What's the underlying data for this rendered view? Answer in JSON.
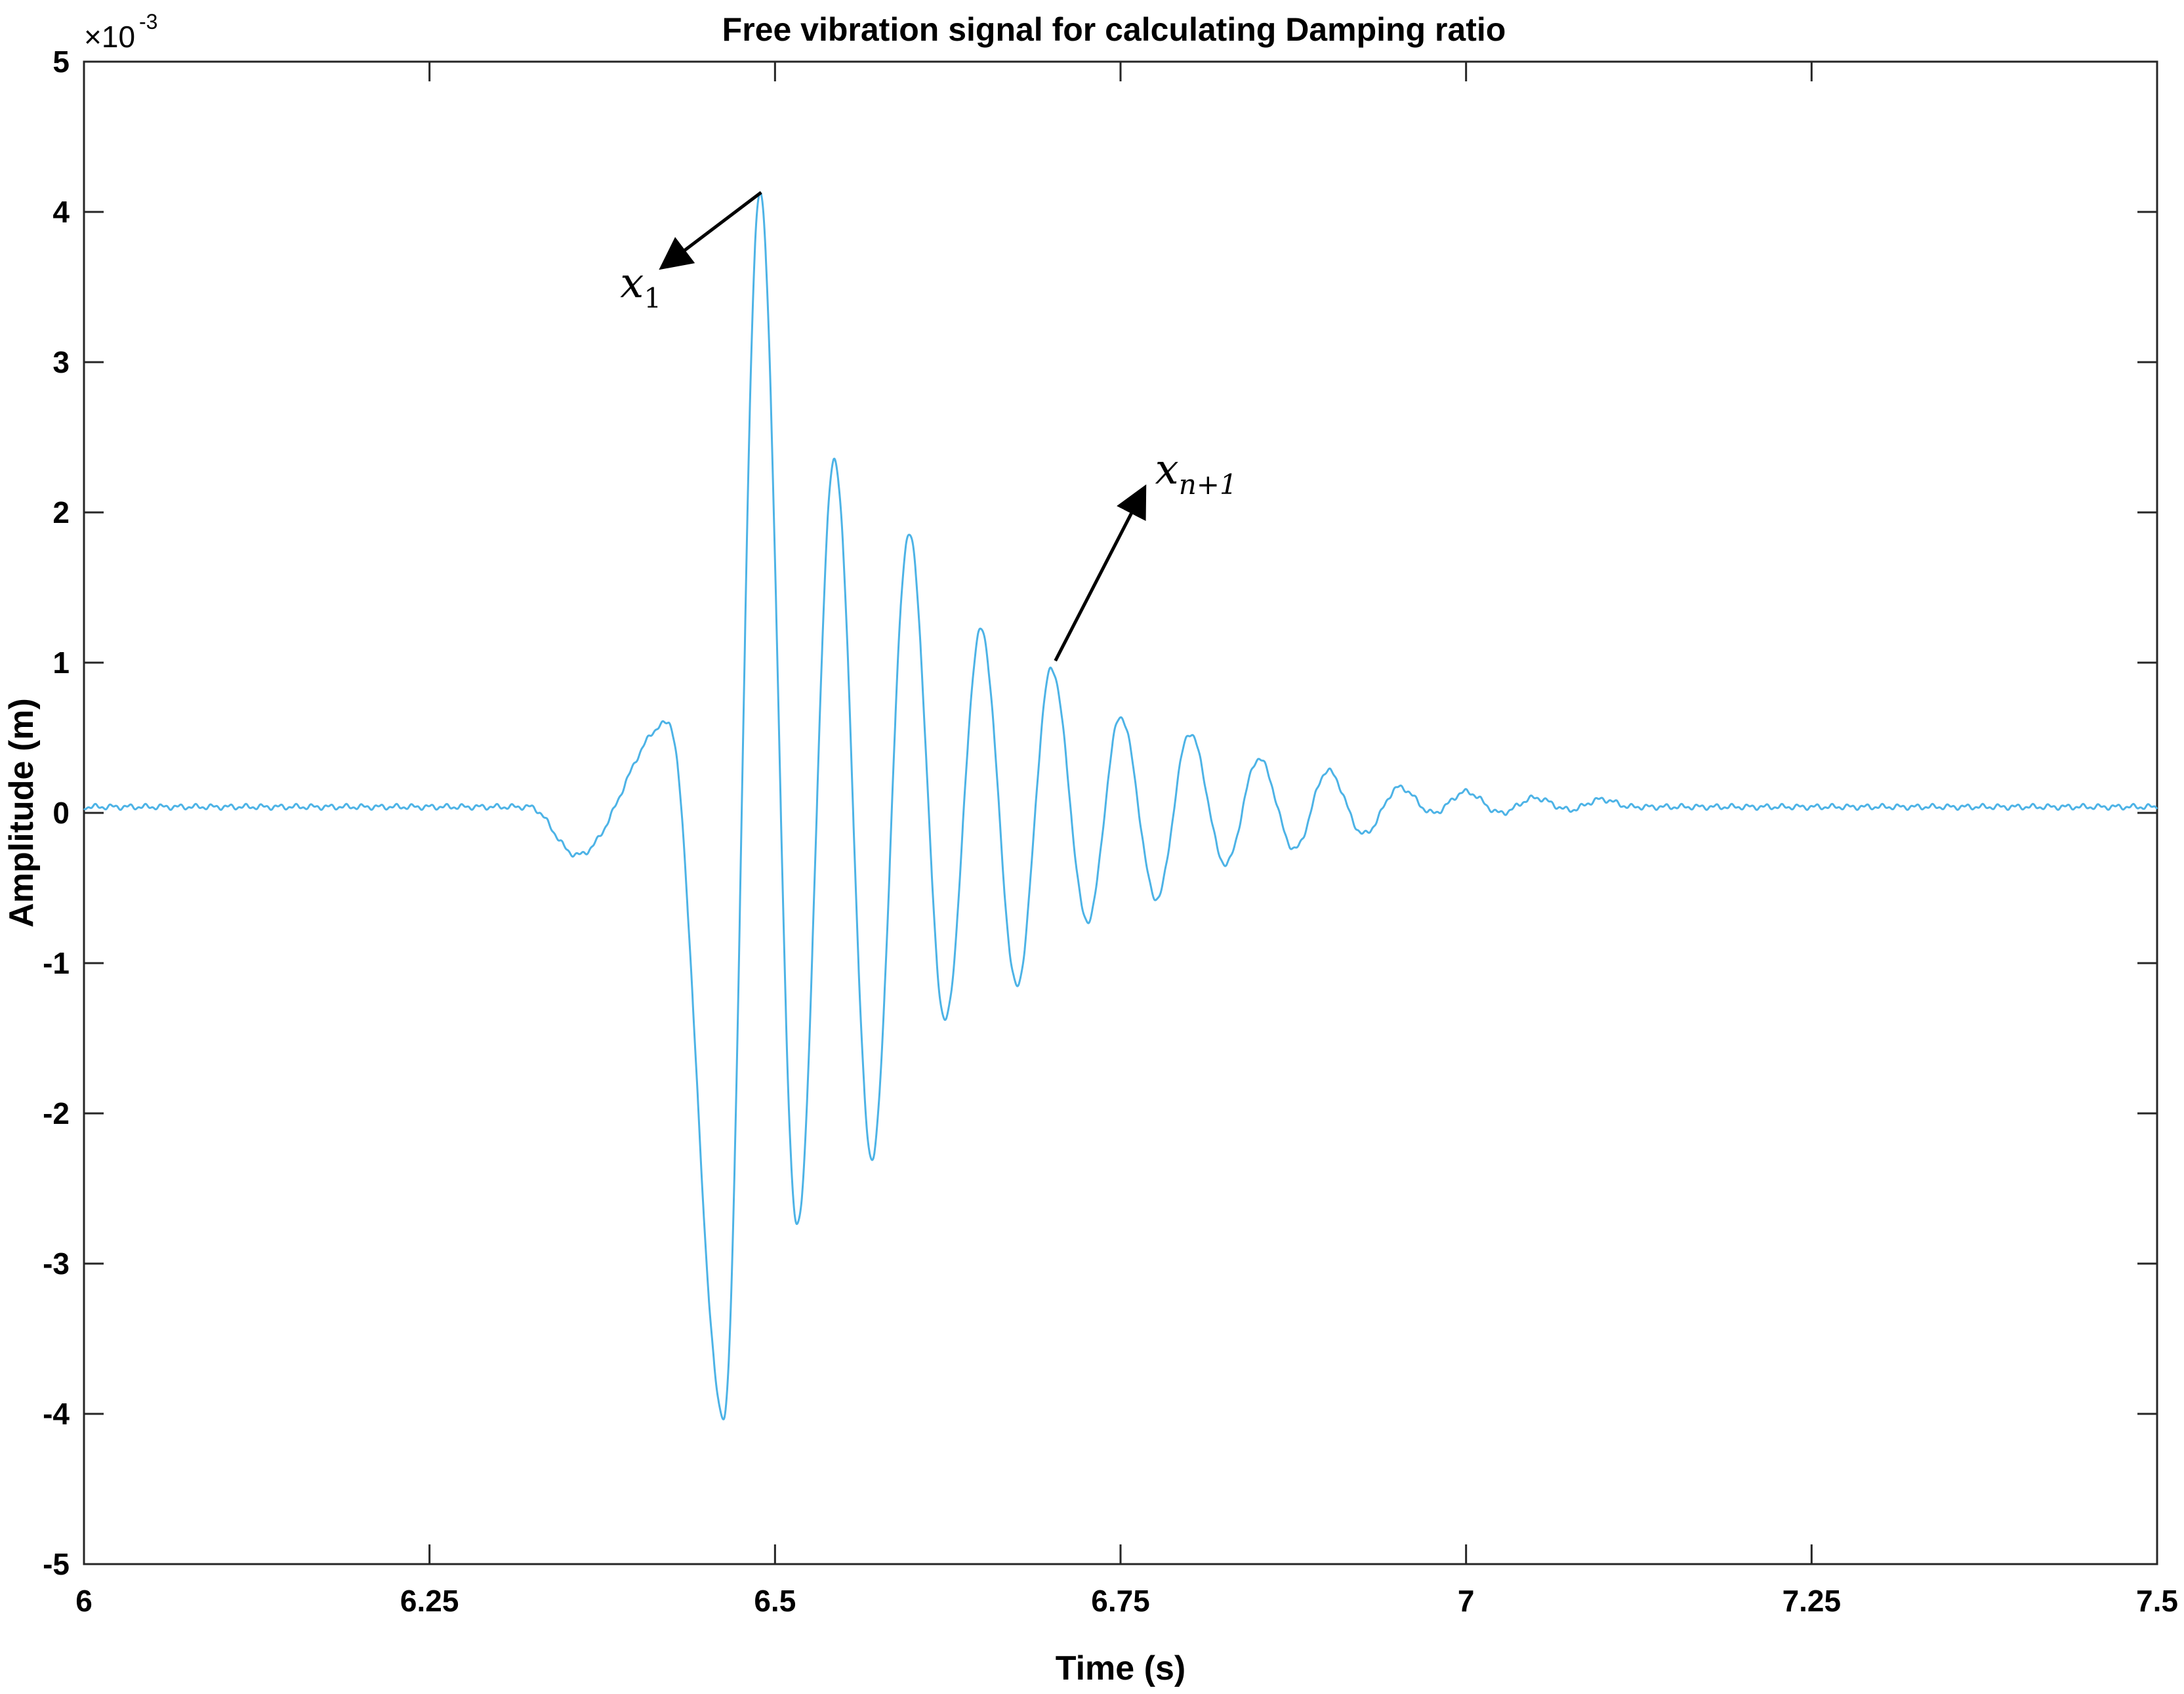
{
  "chart_data": {
    "type": "line",
    "title": "Free vibration signal for calculating Damping ratio",
    "xlabel": "Time (s)",
    "ylabel": "Amplitude (m)",
    "y_multiplier_label": "×10",
    "y_multiplier_exp": "-3",
    "xlim": [
      6,
      7.5
    ],
    "ylim": [
      -5,
      5
    ],
    "x_ticks": [
      "6",
      "6.25",
      "6.5",
      "6.75",
      "7",
      "7.25",
      "7.5"
    ],
    "y_ticks": [
      "5",
      "4",
      "3",
      "2",
      "1",
      "0",
      "-1",
      "-2",
      "-3",
      "-4",
      "-5"
    ],
    "grid": false,
    "line_color": "#4DB3E6",
    "series": [
      {
        "name": "",
        "x": [
          6.0,
          6.05,
          6.1,
          6.15,
          6.2,
          6.25,
          6.3,
          6.35,
          6.4,
          6.45,
          6.5,
          6.55,
          6.6,
          6.65,
          6.7,
          6.75,
          6.8,
          6.85,
          6.9,
          6.95,
          7.0,
          7.05,
          7.1,
          7.15,
          7.2,
          7.25,
          7.3,
          7.35,
          7.4,
          7.45,
          7.5
        ],
        "y": [
          0.04,
          0.04,
          0.04,
          0.04,
          0.04,
          0.04,
          0.04,
          0.04,
          0.04,
          0.04,
          0.04,
          0.04,
          0.04,
          0.04,
          0.04,
          0.04,
          0.04,
          0.04,
          0.04,
          0.04,
          0.04,
          0.04,
          0.04,
          0.04,
          0.04,
          0.04,
          0.04,
          0.04,
          0.04,
          0.04,
          0.04
        ]
      }
    ],
    "peaks": {
      "t": [
        6.322,
        6.357,
        6.423,
        6.463,
        6.489,
        6.516,
        6.543,
        6.57,
        6.597,
        6.623,
        6.649,
        6.675,
        6.7,
        6.726,
        6.75,
        6.776,
        6.8,
        6.826,
        6.85,
        6.876,
        6.9,
        6.926,
        6.952,
        6.976,
        7.0,
        7.025,
        7.05,
        7.075,
        7.098,
        7.12
      ],
      "y": [
        0.04,
        -0.28,
        0.6,
        -4.02,
        4.13,
        -2.75,
        2.35,
        -2.3,
        1.86,
        -1.38,
        1.22,
        -1.15,
        0.96,
        -0.72,
        0.64,
        -0.57,
        0.53,
        -0.34,
        0.36,
        -0.24,
        0.28,
        -0.14,
        0.17,
        0.0,
        0.14,
        0.0,
        0.1,
        0.02,
        0.09,
        0.04
      ]
    },
    "annotations": [
      {
        "base": "x",
        "sub": "1",
        "target_x": 6.49,
        "target_y": 4.13
      },
      {
        "base": "x",
        "sub": "n+1",
        "target_x": 6.7,
        "target_y": 0.96
      }
    ]
  }
}
